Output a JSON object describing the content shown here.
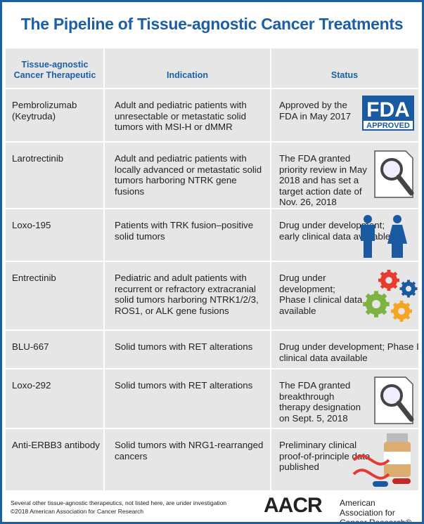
{
  "title": "The Pipeline of Tissue-agnostic Cancer Treatments",
  "table": {
    "header": [
      "Tissue-agnostic Cancer Therapeutic",
      "Indication",
      "Status"
    ],
    "rows": [
      [
        "Pembrolizumab (Keytruda)",
        "Adult and pediatric patients with unresectable or metastatic solid tumors with MSI-H or dMMR",
        "Approved by the FDA in May 2017"
      ],
      [
        "Larotrectinib",
        "Adult and pediatric patients with locally advanced or metastatic solid tumors harboring NTRK gene fusions",
        "The FDA granted priority review in May 2018 and has set a target action date of Nov. 26, 2018"
      ],
      [
        "Loxo-195",
        "Patients with TRK fusion–positive solid tumors",
        "Drug under development; early clinical data available"
      ],
      [
        "Entrectinib",
        "Pediatric and adult patients with recurrent or refractory extracranial solid tumors harboring NTRK1/2/3, ROS1, or ALK gene fusions",
        "Drug under development; Phase I clinical data available"
      ],
      [
        "BLU-667",
        "Solid tumors with RET alterations",
        "Drug under development; Phase I clinical data available"
      ],
      [
        "Loxo-292",
        "Solid tumors with RET alterations",
        "The FDA granted breakthrough therapy designation on Sept. 5, 2018"
      ],
      [
        "Anti-ERBB3 antibody",
        "Solid tumors with NRG1-rearranged cancers",
        "Preliminary clinical proof-of-principle data published"
      ]
    ]
  },
  "badge": {
    "fda": "FDA",
    "approved": "APPROVED"
  },
  "footer": {
    "note": "Several other tissue-agnostic therapeutics, not listed here, are under investigation",
    "copyright": "©2018 American Association for Cancer Research"
  },
  "logo": {
    "mark": "AACR",
    "name": "American Association for Cancer Research®"
  }
}
